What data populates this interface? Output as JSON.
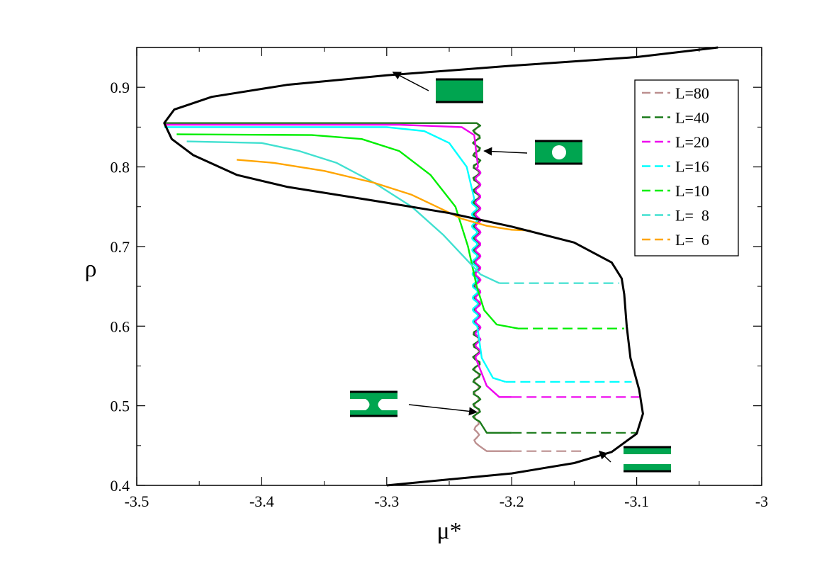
{
  "chart_data": {
    "type": "line",
    "xlabel": "μ*",
    "ylabel": "ρ",
    "xlim": [
      -3.5,
      -3.0
    ],
    "ylim": [
      0.4,
      0.95
    ],
    "x_ticks": [
      -3.5,
      -3.4,
      -3.3,
      -3.2,
      -3.1,
      -3.0
    ],
    "x_tick_labels": [
      "-3.5",
      "-3.4",
      "-3.3",
      "-3.2",
      "-3.1",
      "-3"
    ],
    "y_ticks": [
      0.4,
      0.5,
      0.6,
      0.7,
      0.8,
      0.9
    ],
    "y_tick_labels": [
      "0.4",
      "0.5",
      "0.6",
      "0.7",
      "0.8",
      "0.9"
    ],
    "grid": false,
    "legend_position": "top-right",
    "bulk_curve": {
      "color": "#000000",
      "points": [
        [
          -3.3,
          0.4
        ],
        [
          -3.2,
          0.415
        ],
        [
          -3.15,
          0.428
        ],
        [
          -3.12,
          0.442
        ],
        [
          -3.1,
          0.465
        ],
        [
          -3.095,
          0.49
        ],
        [
          -3.098,
          0.52
        ],
        [
          -3.105,
          0.56
        ],
        [
          -3.108,
          0.6
        ],
        [
          -3.11,
          0.64
        ],
        [
          -3.112,
          0.66
        ],
        [
          -3.12,
          0.68
        ],
        [
          -3.15,
          0.705
        ],
        [
          -3.2,
          0.725
        ],
        [
          -3.25,
          0.742
        ],
        [
          -3.3,
          0.755
        ],
        [
          -3.38,
          0.775
        ],
        [
          -3.42,
          0.79
        ],
        [
          -3.455,
          0.815
        ],
        [
          -3.472,
          0.835
        ],
        [
          -3.478,
          0.855
        ],
        [
          -3.47,
          0.872
        ],
        [
          -3.44,
          0.888
        ],
        [
          -3.38,
          0.903
        ],
        [
          -3.3,
          0.915
        ],
        [
          -3.2,
          0.927
        ],
        [
          -3.1,
          0.938
        ],
        [
          -3.035,
          0.95
        ]
      ]
    },
    "series": [
      {
        "name": "L=80",
        "color": "#bc8f8f",
        "stable": [
          [
            -3.478,
            0.855
          ],
          [
            -3.228,
            0.855
          ],
          [
            -3.228,
            0.45
          ],
          [
            -3.22,
            0.443
          ],
          [
            -3.2,
            0.443
          ]
        ],
        "metastable": [
          [
            -3.2,
            0.443
          ],
          [
            -3.142,
            0.443
          ]
        ],
        "oscillate": true,
        "amplitude": 0.002
      },
      {
        "name": "L=40",
        "color": "#1a7a1a",
        "stable": [
          [
            -3.478,
            0.855
          ],
          [
            -3.228,
            0.855
          ],
          [
            -3.228,
            0.48
          ],
          [
            -3.22,
            0.466
          ],
          [
            -3.2,
            0.466
          ]
        ],
        "metastable": [
          [
            -3.2,
            0.466
          ],
          [
            -3.1,
            0.466
          ]
        ],
        "oscillate": true,
        "amplitude": 0.003
      },
      {
        "name": "L=20",
        "color": "#ee00ee",
        "stable": [
          [
            -3.478,
            0.853
          ],
          [
            -3.29,
            0.853
          ],
          [
            -3.24,
            0.85
          ],
          [
            -3.23,
            0.84
          ],
          [
            -3.227,
            0.8
          ],
          [
            -3.227,
            0.56
          ],
          [
            -3.22,
            0.525
          ],
          [
            -3.21,
            0.511
          ],
          [
            -3.2,
            0.511
          ]
        ],
        "metastable": [
          [
            -3.2,
            0.511
          ],
          [
            -3.098,
            0.511
          ]
        ],
        "oscillate": true,
        "amplitude": 0.002
      },
      {
        "name": "L=16",
        "color": "#00ffff",
        "stable": [
          [
            -3.478,
            0.85
          ],
          [
            -3.3,
            0.85
          ],
          [
            -3.27,
            0.845
          ],
          [
            -3.25,
            0.83
          ],
          [
            -3.236,
            0.8
          ],
          [
            -3.23,
            0.76
          ],
          [
            -3.229,
            0.6
          ],
          [
            -3.224,
            0.56
          ],
          [
            -3.215,
            0.535
          ],
          [
            -3.205,
            0.53
          ]
        ],
        "metastable": [
          [
            -3.205,
            0.53
          ],
          [
            -3.104,
            0.53
          ]
        ],
        "oscillate": true,
        "amplitude": 0.002
      },
      {
        "name": "L=10",
        "color": "#00ee00",
        "stable": [
          [
            -3.468,
            0.841
          ],
          [
            -3.36,
            0.84
          ],
          [
            -3.32,
            0.835
          ],
          [
            -3.29,
            0.82
          ],
          [
            -3.265,
            0.79
          ],
          [
            -3.245,
            0.75
          ],
          [
            -3.235,
            0.7
          ],
          [
            -3.228,
            0.65
          ],
          [
            -3.222,
            0.62
          ],
          [
            -3.212,
            0.602
          ],
          [
            -3.195,
            0.597
          ]
        ],
        "metastable": [
          [
            -3.195,
            0.597
          ],
          [
            -3.11,
            0.597
          ]
        ],
        "oscillate": false,
        "amplitude": 0
      },
      {
        "name": "L=  8",
        "color": "#40e0d0",
        "stable": [
          [
            -3.46,
            0.832
          ],
          [
            -3.4,
            0.83
          ],
          [
            -3.37,
            0.82
          ],
          [
            -3.34,
            0.805
          ],
          [
            -3.31,
            0.78
          ],
          [
            -3.28,
            0.75
          ],
          [
            -3.255,
            0.715
          ],
          [
            -3.24,
            0.69
          ],
          [
            -3.225,
            0.665
          ],
          [
            -3.21,
            0.654
          ]
        ],
        "metastable": [
          [
            -3.21,
            0.654
          ],
          [
            -3.114,
            0.654
          ]
        ],
        "oscillate": false,
        "amplitude": 0
      },
      {
        "name": "L=  6",
        "color": "#ffa500",
        "stable": [
          [
            -3.42,
            0.809
          ],
          [
            -3.39,
            0.805
          ],
          [
            -3.35,
            0.795
          ],
          [
            -3.31,
            0.78
          ],
          [
            -3.28,
            0.765
          ],
          [
            -3.26,
            0.75
          ],
          [
            -3.24,
            0.735
          ],
          [
            -3.22,
            0.726
          ],
          [
            -3.2,
            0.721
          ],
          [
            -3.185,
            0.72
          ]
        ],
        "metastable": [],
        "oscillate": false,
        "amplitude": 0
      }
    ],
    "annotations": [
      {
        "icon": "filled-slab",
        "arrow_tip": [
          -3.295,
          0.919
        ]
      },
      {
        "icon": "bubble",
        "arrow_tip": [
          -3.222,
          0.82
        ]
      },
      {
        "icon": "bridge",
        "arrow_tip": [
          -3.228,
          0.492
        ]
      },
      {
        "icon": "empty-slit",
        "arrow_tip": [
          -3.13,
          0.443
        ]
      }
    ]
  }
}
